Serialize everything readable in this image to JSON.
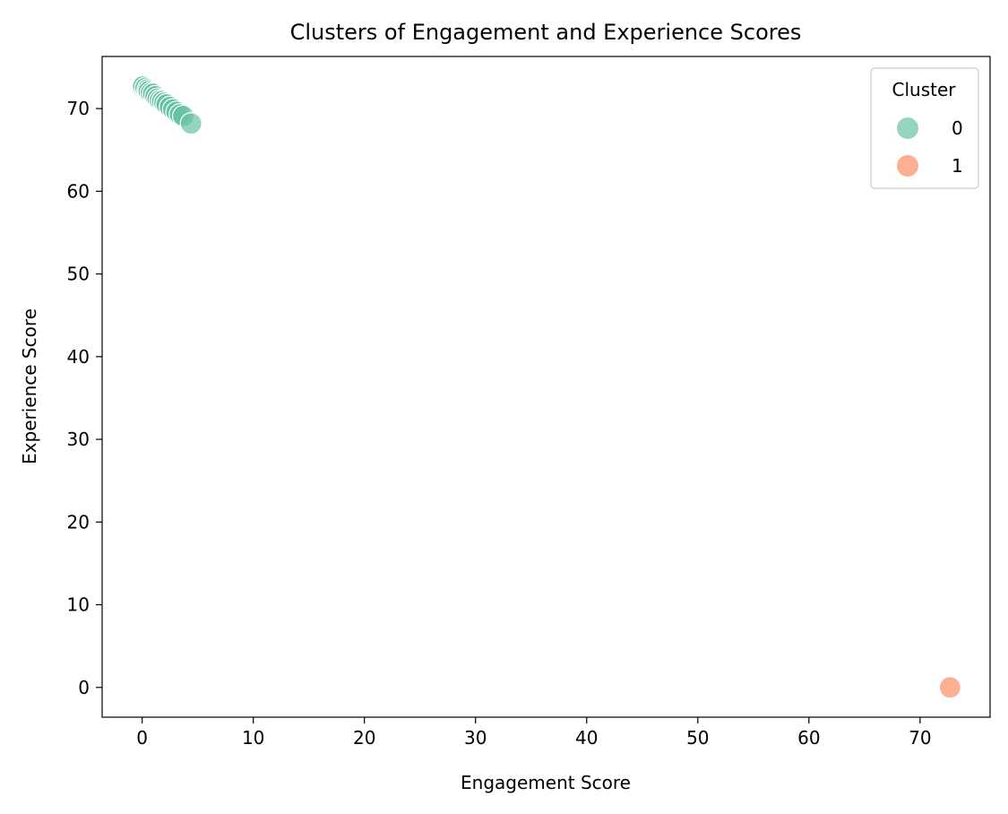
{
  "chart_data": {
    "type": "scatter",
    "title": "Clusters of Engagement and Experience Scores",
    "xlabel": "Engagement Score",
    "ylabel": "Experience Score",
    "xlim": [
      -3.6,
      76.3
    ],
    "ylim": [
      -3.6,
      76.3
    ],
    "xticks": [
      0,
      10,
      20,
      30,
      40,
      50,
      60,
      70
    ],
    "yticks": [
      0,
      10,
      20,
      30,
      40,
      50,
      60,
      70
    ],
    "grid": false,
    "legend": {
      "title": "Cluster",
      "placement": "top-right",
      "entries": [
        "0",
        "1"
      ]
    },
    "series": [
      {
        "name": "0",
        "color": "#66c2a5",
        "points": [
          {
            "x": 0.0,
            "y": 72.6
          },
          {
            "x": 0.1,
            "y": 72.7
          },
          {
            "x": 0.3,
            "y": 72.5
          },
          {
            "x": 0.5,
            "y": 72.3
          },
          {
            "x": 0.6,
            "y": 72.1
          },
          {
            "x": 0.8,
            "y": 71.9
          },
          {
            "x": 1.0,
            "y": 71.8
          },
          {
            "x": 1.2,
            "y": 71.5
          },
          {
            "x": 1.4,
            "y": 71.2
          },
          {
            "x": 1.6,
            "y": 71.0
          },
          {
            "x": 1.8,
            "y": 70.9
          },
          {
            "x": 2.0,
            "y": 70.7
          },
          {
            "x": 2.2,
            "y": 70.5
          },
          {
            "x": 2.5,
            "y": 70.2
          },
          {
            "x": 2.8,
            "y": 69.9
          },
          {
            "x": 3.1,
            "y": 69.6
          },
          {
            "x": 3.4,
            "y": 69.3
          },
          {
            "x": 3.7,
            "y": 69.1
          },
          {
            "x": 4.4,
            "y": 68.2
          }
        ]
      },
      {
        "name": "1",
        "color": "#fc8d62",
        "points": [
          {
            "x": 72.7,
            "y": 0.0
          }
        ]
      }
    ]
  }
}
